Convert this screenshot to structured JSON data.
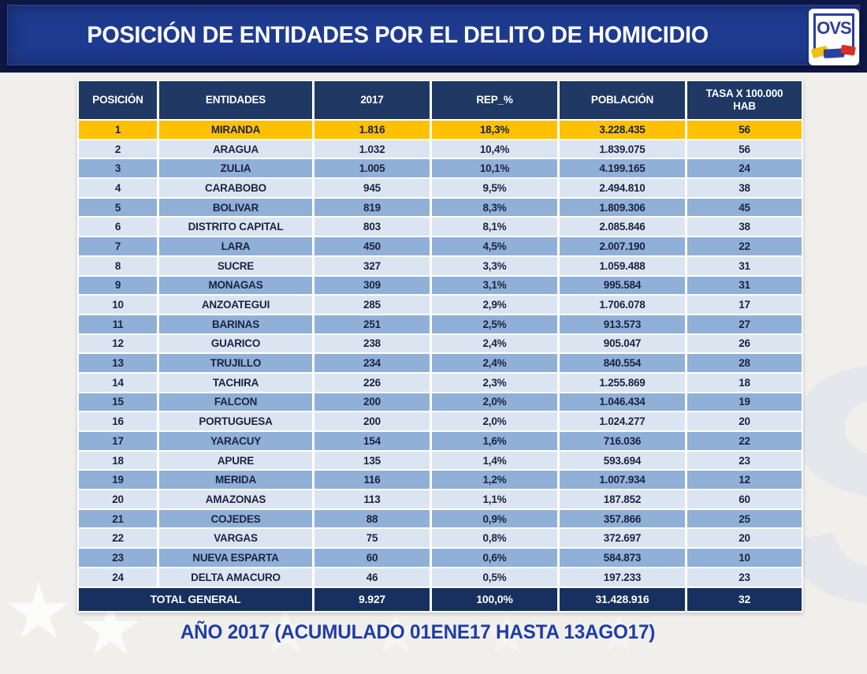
{
  "header": {
    "title": "POSICIÓN DE ENTIDADES POR EL DELITO DE HOMICIDIO",
    "logo": {
      "text": "OVS"
    }
  },
  "chart_data": {
    "type": "table",
    "title": "POSICIÓN DE ENTIDADES POR EL DELITO DE HOMICIDIO",
    "columns": [
      "POSICIÓN",
      "ENTIDADES",
      "2017",
      "REP_%",
      "POBLACIÓN",
      "TASA X 100.000 HAB"
    ],
    "rows": [
      [
        "1",
        "MIRANDA",
        "1.816",
        "18,3%",
        "3.228.435",
        "56"
      ],
      [
        "2",
        "ARAGUA",
        "1.032",
        "10,4%",
        "1.839.075",
        "56"
      ],
      [
        "3",
        "ZULIA",
        "1.005",
        "10,1%",
        "4.199.165",
        "24"
      ],
      [
        "4",
        "CARABOBO",
        "945",
        "9,5%",
        "2.494.810",
        "38"
      ],
      [
        "5",
        "BOLIVAR",
        "819",
        "8,3%",
        "1.809.306",
        "45"
      ],
      [
        "6",
        "DISTRITO CAPITAL",
        "803",
        "8,1%",
        "2.085.846",
        "38"
      ],
      [
        "7",
        "LARA",
        "450",
        "4,5%",
        "2.007.190",
        "22"
      ],
      [
        "8",
        "SUCRE",
        "327",
        "3,3%",
        "1.059.488",
        "31"
      ],
      [
        "9",
        "MONAGAS",
        "309",
        "3,1%",
        "995.584",
        "31"
      ],
      [
        "10",
        "ANZOATEGUI",
        "285",
        "2,9%",
        "1.706.078",
        "17"
      ],
      [
        "11",
        "BARINAS",
        "251",
        "2,5%",
        "913.573",
        "27"
      ],
      [
        "12",
        "GUARICO",
        "238",
        "2,4%",
        "905.047",
        "26"
      ],
      [
        "13",
        "TRUJILLO",
        "234",
        "2,4%",
        "840.554",
        "28"
      ],
      [
        "14",
        "TACHIRA",
        "226",
        "2,3%",
        "1.255.869",
        "18"
      ],
      [
        "15",
        "FALCON",
        "200",
        "2,0%",
        "1.046.434",
        "19"
      ],
      [
        "16",
        "PORTUGUESA",
        "200",
        "2,0%",
        "1.024.277",
        "20"
      ],
      [
        "17",
        "YARACUY",
        "154",
        "1,6%",
        "716.036",
        "22"
      ],
      [
        "18",
        "APURE",
        "135",
        "1,4%",
        "593.694",
        "23"
      ],
      [
        "19",
        "MERIDA",
        "116",
        "1,2%",
        "1.007.934",
        "12"
      ],
      [
        "20",
        "AMAZONAS",
        "113",
        "1,1%",
        "187.852",
        "60"
      ],
      [
        "21",
        "COJEDES",
        "88",
        "0,9%",
        "357.866",
        "25"
      ],
      [
        "22",
        "VARGAS",
        "75",
        "0,8%",
        "372.697",
        "20"
      ],
      [
        "23",
        "NUEVA ESPARTA",
        "60",
        "0,6%",
        "584.873",
        "10"
      ],
      [
        "24",
        "DELTA AMACURO",
        "46",
        "0,5%",
        "197.233",
        "23"
      ]
    ],
    "total_row": [
      "TOTAL GENERAL",
      "9.927",
      "100,0%",
      "31.428.916",
      "32"
    ],
    "highlight": {
      "row_index": 0,
      "color": "#ffc000"
    },
    "footnote": "AÑO 2017 (ACUMULADO 01ENE17 HASTA 13AGO17)"
  },
  "footer": {
    "caption": "AÑO 2017 (ACUMULADO 01ENE17 HASTA 13AGO17)"
  },
  "watermark": {
    "text": "OVS"
  },
  "colors": {
    "topbar_navy": "#0e1644",
    "banner_blue": "#1e3a8e",
    "header_navy": "#1f3864",
    "total_navy": "#17305f",
    "highlight_gold": "#ffc000",
    "row_light": "#dbe5f2",
    "row_dark": "#90b0d8",
    "footer_text": "#1f3da8"
  }
}
